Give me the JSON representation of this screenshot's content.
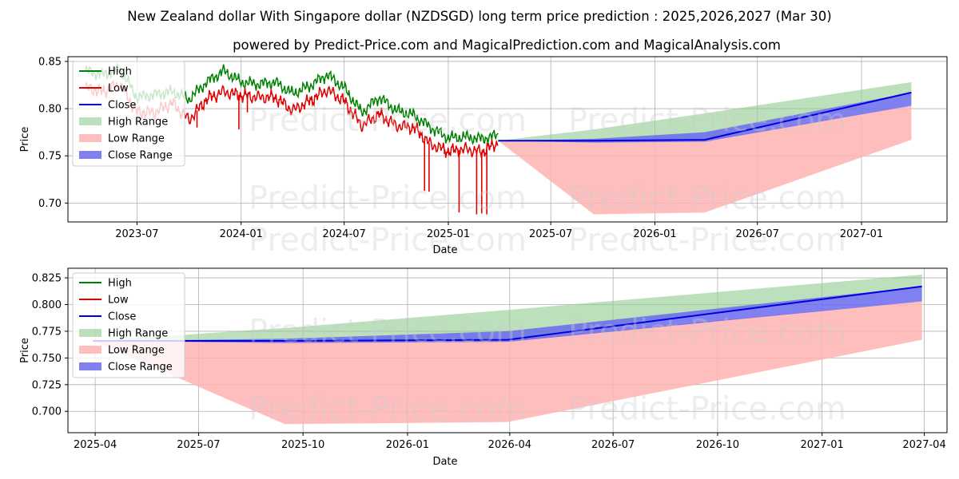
{
  "chart_title": "New Zealand dollar With Singapore dollar (NZDSGD) long term price prediction : 2025,2026,2027 (Mar 30)",
  "chart_subtitle": "powered by Predict-Price.com and MagicalPrediction.com and MagicalAnalysis.com",
  "watermark": "Predict-Price.com",
  "colors": {
    "high": "#008000",
    "low": "#e00000",
    "close": "#0000dd",
    "high_range": "#8fcc8f",
    "low_range": "#ffb3b3",
    "close_range": "#6a6aee"
  },
  "chart_data": [
    {
      "type": "line",
      "title": "New Zealand dollar With Singapore dollar (NZDSGD) long term price prediction : 2025,2026,2027 (Mar 30)",
      "xlabel": "Date",
      "ylabel": "Price",
      "x_ticks": [
        "2023-07",
        "2024-01",
        "2024-07",
        "2025-01",
        "2025-07",
        "2026-01",
        "2026-07",
        "2027-01"
      ],
      "y_ticks": [
        "0.70",
        "0.75",
        "0.80",
        "0.85"
      ],
      "ylim": [
        0.68,
        0.855
      ],
      "legend": [
        "High",
        "Low",
        "Close",
        "High Range",
        "Low Range",
        "Close Range"
      ],
      "legend_position": "top-left",
      "history": {
        "dates": [
          "2023-04-01",
          "2023-05-01",
          "2023-06-01",
          "2023-07-01",
          "2023-08-01",
          "2023-09-01",
          "2023-10-01",
          "2023-11-01",
          "2023-12-01",
          "2024-01-01",
          "2024-02-01",
          "2024-03-01",
          "2024-04-01",
          "2024-05-01",
          "2024-06-01",
          "2024-07-01",
          "2024-08-01",
          "2024-09-01",
          "2024-10-01",
          "2024-11-01",
          "2024-12-01",
          "2025-01-01",
          "2025-02-01",
          "2025-03-01",
          "2025-03-30"
        ],
        "high": [
          0.84,
          0.836,
          0.842,
          0.812,
          0.815,
          0.818,
          0.81,
          0.828,
          0.84,
          0.828,
          0.826,
          0.828,
          0.816,
          0.824,
          0.836,
          0.822,
          0.796,
          0.812,
          0.798,
          0.793,
          0.78,
          0.769,
          0.77,
          0.768,
          0.772
        ],
        "low": [
          0.822,
          0.818,
          0.826,
          0.796,
          0.796,
          0.806,
          0.788,
          0.81,
          0.818,
          0.814,
          0.812,
          0.812,
          0.798,
          0.808,
          0.82,
          0.808,
          0.782,
          0.794,
          0.782,
          0.78,
          0.762,
          0.755,
          0.757,
          0.754,
          0.764
        ]
      },
      "history_spikes": [
        {
          "date": "2023-10-15",
          "low": 0.78
        },
        {
          "date": "2023-12-28",
          "low": 0.778
        },
        {
          "date": "2024-01-12",
          "low": 0.796
        },
        {
          "date": "2024-10-20",
          "low": 0.783
        },
        {
          "date": "2024-11-20",
          "low": 0.713
        },
        {
          "date": "2024-11-28",
          "low": 0.712
        },
        {
          "date": "2024-12-25",
          "low": 0.752
        },
        {
          "date": "2025-01-20",
          "low": 0.69
        },
        {
          "date": "2025-02-20",
          "low": 0.688
        },
        {
          "date": "2025-03-01",
          "low": 0.689
        },
        {
          "date": "2025-03-10",
          "low": 0.688
        }
      ],
      "forecast": {
        "dates": [
          "2025-03-30",
          "2025-09-15",
          "2026-03-30",
          "2027-03-30"
        ],
        "close": [
          0.766,
          0.766,
          0.767,
          0.817
        ],
        "high_range_top": [
          0.766,
          0.778,
          0.795,
          0.828
        ],
        "high_range_bottom": [
          0.766,
          0.766,
          0.767,
          0.817
        ],
        "low_range_top": [
          0.766,
          0.766,
          0.767,
          0.803
        ],
        "low_range_bottom": [
          0.766,
          0.688,
          0.69,
          0.767
        ],
        "close_range_top": [
          0.766,
          0.768,
          0.775,
          0.817
        ],
        "close_range_bottom": [
          0.766,
          0.764,
          0.765,
          0.803
        ]
      }
    },
    {
      "type": "line",
      "xlabel": "Date",
      "ylabel": "Price",
      "x_ticks": [
        "2025-04",
        "2025-07",
        "2025-10",
        "2026-01",
        "2026-04",
        "2026-07",
        "2026-10",
        "2027-01",
        "2027-04"
      ],
      "y_ticks": [
        "0.700",
        "0.725",
        "0.750",
        "0.775",
        "0.800",
        "0.825"
      ],
      "ylim": [
        0.68,
        0.834
      ],
      "legend": [
        "High",
        "Low",
        "Close",
        "High Range",
        "Low Range",
        "Close Range"
      ],
      "legend_position": "top-left",
      "forecast": {
        "dates": [
          "2025-03-30",
          "2025-09-15",
          "2026-03-30",
          "2027-03-30"
        ],
        "close": [
          0.766,
          0.766,
          0.767,
          0.817
        ],
        "high_range_top": [
          0.766,
          0.778,
          0.795,
          0.828
        ],
        "high_range_bottom": [
          0.766,
          0.766,
          0.767,
          0.817
        ],
        "low_range_top": [
          0.766,
          0.766,
          0.767,
          0.803
        ],
        "low_range_bottom": [
          0.766,
          0.688,
          0.69,
          0.767
        ],
        "close_range_top": [
          0.766,
          0.768,
          0.775,
          0.817
        ],
        "close_range_bottom": [
          0.766,
          0.764,
          0.765,
          0.803
        ]
      }
    }
  ]
}
